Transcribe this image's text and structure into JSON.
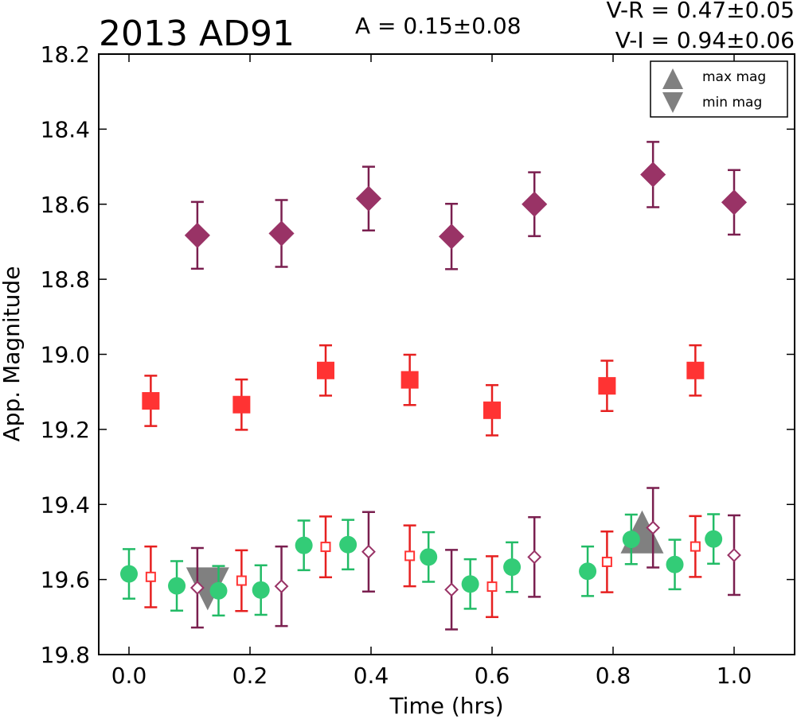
{
  "chart_data": {
    "type": "scatter",
    "title": "2013 AD91",
    "annotations": {
      "amplitude": "A  = 0.15±0.08",
      "v_r": "V-R = 0.47±0.05",
      "v_i": "V-I  = 0.94±0.06"
    },
    "xlabel": "Time (hrs)",
    "ylabel": "App. Magnitude",
    "xlim": [
      -0.05,
      1.1
    ],
    "ylim": [
      19.8,
      18.2
    ],
    "y_inverted": true,
    "grid": false,
    "legend_position": "top-right",
    "xticks": [
      {
        "v": 0.0,
        "label": "0.0"
      },
      {
        "v": 0.2,
        "label": "0.2"
      },
      {
        "v": 0.4,
        "label": "0.4"
      },
      {
        "v": 0.6,
        "label": "0.6"
      },
      {
        "v": 0.8,
        "label": "0.8"
      },
      {
        "v": 1.0,
        "label": "1.0"
      }
    ],
    "yticks": [
      {
        "v": 18.2,
        "label": "18.2"
      },
      {
        "v": 18.4,
        "label": "18.4"
      },
      {
        "v": 18.6,
        "label": "18.6"
      },
      {
        "v": 18.8,
        "label": "18.8"
      },
      {
        "v": 19.0,
        "label": "19.0"
      },
      {
        "v": 19.2,
        "label": "19.2"
      },
      {
        "v": 19.4,
        "label": "19.4"
      },
      {
        "v": 19.6,
        "label": "19.6"
      },
      {
        "v": 19.8,
        "label": "19.8"
      }
    ],
    "legend": [
      {
        "label": "max mag",
        "marker": "triangle-up",
        "color": "#808080"
      },
      {
        "label": "min mag",
        "marker": "triangle-down",
        "color": "#808080"
      }
    ],
    "series": [
      {
        "marker": "diamond",
        "fill": "#993366",
        "stroke": "#993366",
        "err_color": "#7a1f4f",
        "filled": true,
        "points": [
          {
            "x": 0.113,
            "y": 18.683,
            "err": 0.089
          },
          {
            "x": 0.252,
            "y": 18.678,
            "err": 0.089
          },
          {
            "x": 0.396,
            "y": 18.585,
            "err": 0.085
          },
          {
            "x": 0.533,
            "y": 18.686,
            "err": 0.087
          },
          {
            "x": 0.67,
            "y": 18.6,
            "err": 0.085
          },
          {
            "x": 0.866,
            "y": 18.521,
            "err": 0.087
          },
          {
            "x": 1.0,
            "y": 18.595,
            "err": 0.086
          }
        ]
      },
      {
        "marker": "square",
        "fill": "#ff3333",
        "stroke": "#ff3333",
        "err_color": "#e62020",
        "filled": true,
        "points": [
          {
            "x": 0.036,
            "y": 19.124,
            "err": 0.067
          },
          {
            "x": 0.186,
            "y": 19.134,
            "err": 0.067
          },
          {
            "x": 0.325,
            "y": 19.043,
            "err": 0.067
          },
          {
            "x": 0.464,
            "y": 19.068,
            "err": 0.067
          },
          {
            "x": 0.6,
            "y": 19.149,
            "err": 0.067
          },
          {
            "x": 0.79,
            "y": 19.084,
            "err": 0.067
          },
          {
            "x": 0.936,
            "y": 19.043,
            "err": 0.067
          }
        ]
      },
      {
        "marker": "circle",
        "fill": "#33cc77",
        "stroke": "#33cc77",
        "err_color": "#22bb66",
        "filled": true,
        "points": [
          {
            "x": 0.0,
            "y": 19.585,
            "err": 0.066
          },
          {
            "x": 0.079,
            "y": 19.617,
            "err": 0.066
          },
          {
            "x": 0.148,
            "y": 19.63,
            "err": 0.066
          },
          {
            "x": 0.218,
            "y": 19.628,
            "err": 0.066
          },
          {
            "x": 0.289,
            "y": 19.509,
            "err": 0.066
          },
          {
            "x": 0.362,
            "y": 19.507,
            "err": 0.066
          },
          {
            "x": 0.495,
            "y": 19.54,
            "err": 0.066
          },
          {
            "x": 0.564,
            "y": 19.612,
            "err": 0.066
          },
          {
            "x": 0.633,
            "y": 19.567,
            "err": 0.066
          },
          {
            "x": 0.758,
            "y": 19.578,
            "err": 0.066
          },
          {
            "x": 0.83,
            "y": 19.493,
            "err": 0.066
          },
          {
            "x": 0.902,
            "y": 19.56,
            "err": 0.066
          },
          {
            "x": 0.966,
            "y": 19.492,
            "err": 0.066
          }
        ]
      },
      {
        "marker": "square",
        "fill": "none",
        "stroke": "#ff3333",
        "err_color": "#e62020",
        "filled": false,
        "points": [
          {
            "x": 0.036,
            "y": 19.593,
            "err": 0.081
          },
          {
            "x": 0.186,
            "y": 19.603,
            "err": 0.081
          },
          {
            "x": 0.325,
            "y": 19.513,
            "err": 0.081
          },
          {
            "x": 0.464,
            "y": 19.537,
            "err": 0.081
          },
          {
            "x": 0.6,
            "y": 19.619,
            "err": 0.081
          },
          {
            "x": 0.79,
            "y": 19.553,
            "err": 0.081
          },
          {
            "x": 0.936,
            "y": 19.512,
            "err": 0.081
          }
        ]
      },
      {
        "marker": "diamond",
        "fill": "none",
        "stroke": "#993366",
        "err_color": "#7a1f4f",
        "filled": false,
        "points": [
          {
            "x": 0.113,
            "y": 19.622,
            "err": 0.106
          },
          {
            "x": 0.252,
            "y": 19.618,
            "err": 0.106
          },
          {
            "x": 0.396,
            "y": 19.526,
            "err": 0.106
          },
          {
            "x": 0.533,
            "y": 19.627,
            "err": 0.106
          },
          {
            "x": 0.67,
            "y": 19.54,
            "err": 0.106
          },
          {
            "x": 0.866,
            "y": 19.462,
            "err": 0.106
          },
          {
            "x": 1.0,
            "y": 19.535,
            "err": 0.106
          }
        ]
      }
    ],
    "extrema": [
      {
        "kind": "min",
        "marker": "triangle-down",
        "x": 0.13,
        "y": 19.622,
        "color": "#808080"
      },
      {
        "kind": "max",
        "marker": "triangle-up",
        "x": 0.848,
        "y": 19.476,
        "color": "#808080"
      }
    ]
  }
}
